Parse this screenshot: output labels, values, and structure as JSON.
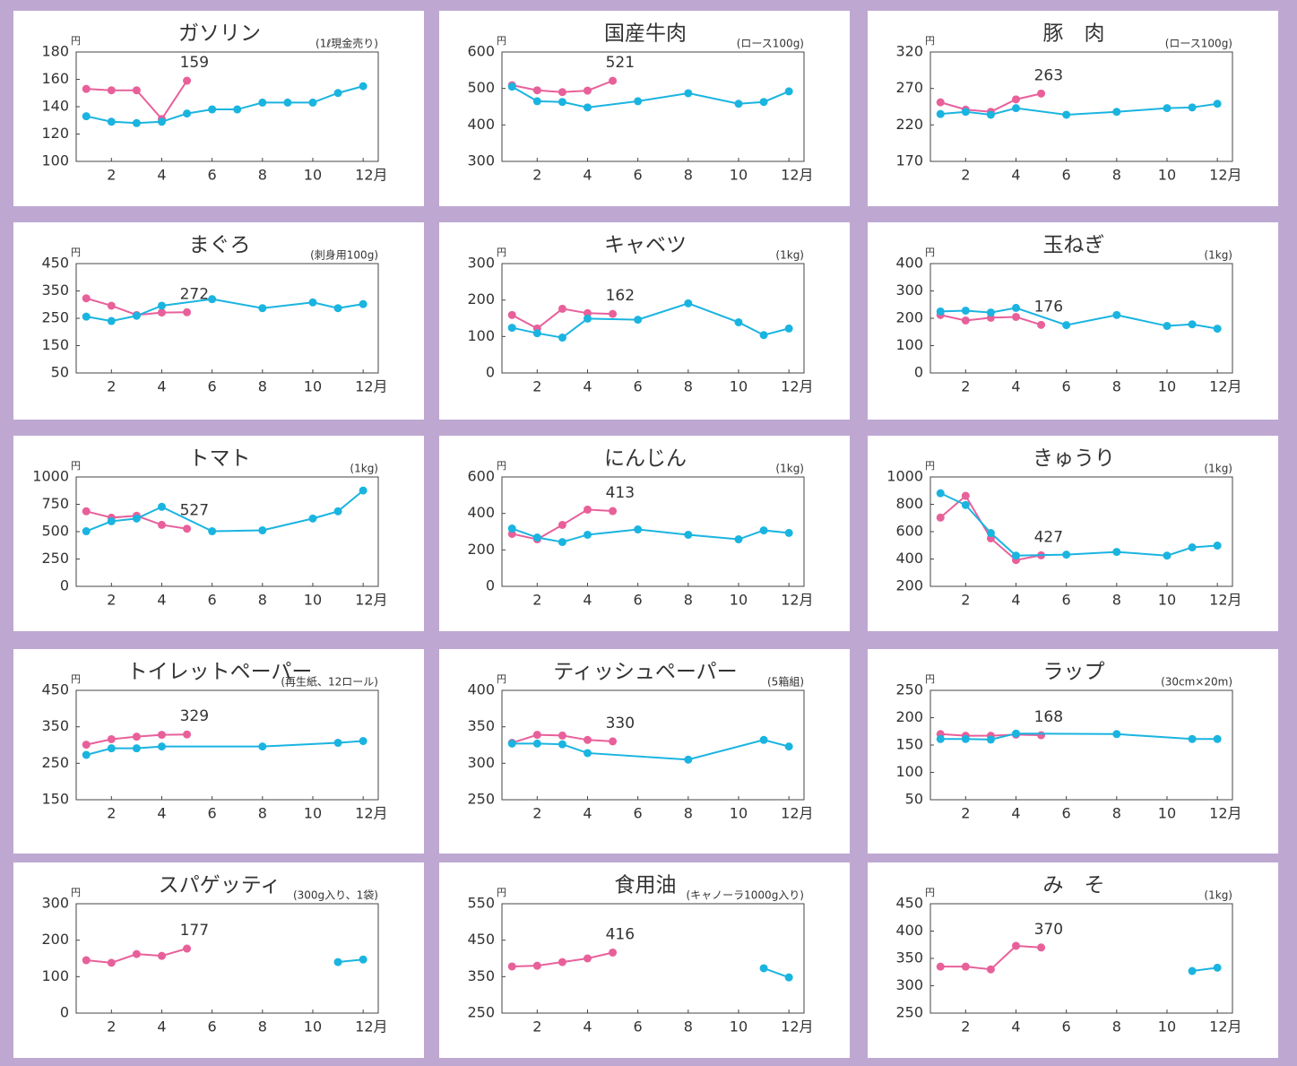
{
  "chart_data": [
    {
      "type": "line",
      "title": "ガソリン",
      "subtitle": "(1ℓ現金売り)",
      "y_unit": "円",
      "xlim": [
        0.6,
        12.6
      ],
      "xticks": [
        2,
        4,
        6,
        8,
        10,
        {
          "value": 12,
          "label": "12月"
        }
      ],
      "ylim": [
        100,
        180
      ],
      "yticks": [
        100,
        120,
        140,
        160,
        180
      ],
      "series": [
        {
          "color": "#e8609a",
          "x": [
            1,
            2,
            3,
            4,
            5
          ],
          "values": [
            153,
            152,
            152,
            131,
            159
          ],
          "value_labels": [
            null,
            null,
            null,
            null,
            "159"
          ]
        },
        {
          "color": "#1ab4e0",
          "x": [
            1,
            2,
            3,
            4,
            5,
            6,
            7,
            8,
            9,
            10,
            11,
            12
          ],
          "values": [
            133,
            129,
            128,
            129,
            135,
            138,
            138,
            143,
            143,
            143,
            150,
            155
          ]
        }
      ]
    },
    {
      "type": "line",
      "title": "国産牛肉",
      "subtitle": "(ロース100g)",
      "y_unit": "円",
      "xlim": [
        0.6,
        12.6
      ],
      "xticks": [
        2,
        4,
        6,
        8,
        10,
        {
          "value": 12,
          "label": "12月"
        }
      ],
      "ylim": [
        300,
        600
      ],
      "yticks": [
        300,
        400,
        500,
        600
      ],
      "series": [
        {
          "color": "#e8609a",
          "x": [
            1,
            2,
            3,
            4,
            5
          ],
          "values": [
            509,
            495,
            490,
            494,
            521
          ],
          "value_labels": [
            null,
            null,
            null,
            null,
            "521"
          ]
        },
        {
          "color": "#1ab4e0",
          "x": [
            1,
            2,
            3,
            4,
            6,
            8,
            10,
            11,
            12
          ],
          "values": [
            505,
            465,
            463,
            448,
            465,
            487,
            458,
            463,
            492
          ]
        }
      ]
    },
    {
      "type": "line",
      "title": "豚　肉",
      "subtitle": "(ロース100g)",
      "y_unit": "円",
      "xlim": [
        0.6,
        12.6
      ],
      "xticks": [
        2,
        4,
        6,
        8,
        10,
        {
          "value": 12,
          "label": "12月"
        }
      ],
      "ylim": [
        170,
        320
      ],
      "yticks": [
        170,
        220,
        270,
        320
      ],
      "series": [
        {
          "color": "#e8609a",
          "x": [
            1,
            2,
            3,
            4,
            5
          ],
          "values": [
            251,
            241,
            238,
            255,
            263
          ],
          "value_labels": [
            null,
            null,
            null,
            null,
            "263"
          ]
        },
        {
          "color": "#1ab4e0",
          "x": [
            1,
            2,
            3,
            4,
            6,
            8,
            10,
            11,
            12
          ],
          "values": [
            235,
            238,
            234,
            243,
            234,
            238,
            243,
            244,
            249
          ]
        }
      ]
    },
    {
      "type": "line",
      "title": "まぐろ",
      "subtitle": "(刺身用100g)",
      "y_unit": "円",
      "xlim": [
        0.6,
        12.6
      ],
      "xticks": [
        2,
        4,
        6,
        8,
        10,
        {
          "value": 12,
          "label": "12月"
        }
      ],
      "ylim": [
        50,
        450
      ],
      "yticks": [
        50,
        150,
        250,
        350,
        450
      ],
      "series": [
        {
          "color": "#e8609a",
          "x": [
            1,
            2,
            3,
            4,
            5
          ],
          "values": [
            323,
            296,
            262,
            271,
            272
          ],
          "value_labels": [
            null,
            null,
            null,
            null,
            "272"
          ]
        },
        {
          "color": "#1ab4e0",
          "x": [
            1,
            2,
            3,
            4,
            6,
            8,
            10,
            11,
            12
          ],
          "values": [
            256,
            240,
            259,
            296,
            320,
            287,
            308,
            287,
            302
          ]
        }
      ]
    },
    {
      "type": "line",
      "title": "キャベツ",
      "subtitle": "(1kg)",
      "y_unit": "円",
      "xlim": [
        0.6,
        12.6
      ],
      "xticks": [
        2,
        4,
        6,
        8,
        10,
        {
          "value": 12,
          "label": "12月"
        }
      ],
      "ylim": [
        0,
        300
      ],
      "yticks": [
        0,
        100,
        200,
        300
      ],
      "series": [
        {
          "color": "#e8609a",
          "x": [
            1,
            2,
            3,
            4,
            5
          ],
          "values": [
            159,
            122,
            176,
            164,
            162
          ],
          "value_labels": [
            null,
            null,
            null,
            null,
            "162"
          ]
        },
        {
          "color": "#1ab4e0",
          "x": [
            1,
            2,
            3,
            4,
            6,
            8,
            10,
            11,
            12
          ],
          "values": [
            124,
            109,
            97,
            149,
            146,
            191,
            139,
            104,
            122
          ]
        }
      ]
    },
    {
      "type": "line",
      "title": "玉ねぎ",
      "subtitle": "(1kg)",
      "y_unit": "円",
      "xlim": [
        0.6,
        12.6
      ],
      "xticks": [
        2,
        4,
        6,
        8,
        10,
        {
          "value": 12,
          "label": "12月"
        }
      ],
      "ylim": [
        0,
        400
      ],
      "yticks": [
        0,
        100,
        200,
        300,
        400
      ],
      "series": [
        {
          "color": "#e8609a",
          "x": [
            1,
            2,
            3,
            4,
            5
          ],
          "values": [
            212,
            192,
            202,
            205,
            176
          ],
          "value_labels": [
            null,
            null,
            null,
            null,
            "176"
          ]
        },
        {
          "color": "#1ab4e0",
          "x": [
            1,
            2,
            3,
            4,
            6,
            8,
            10,
            11,
            12
          ],
          "values": [
            225,
            228,
            221,
            238,
            175,
            212,
            172,
            178,
            162
          ]
        }
      ]
    },
    {
      "type": "line",
      "title": "トマト",
      "subtitle": "(1kg)",
      "y_unit": "円",
      "xlim": [
        0.6,
        12.6
      ],
      "xticks": [
        2,
        4,
        6,
        8,
        10,
        {
          "value": 12,
          "label": "12月"
        }
      ],
      "ylim": [
        0,
        1000
      ],
      "yticks": [
        0,
        250,
        500,
        750,
        1000
      ],
      "series": [
        {
          "color": "#e8609a",
          "x": [
            1,
            2,
            3,
            4,
            5
          ],
          "values": [
            686,
            628,
            645,
            562,
            527
          ],
          "value_labels": [
            null,
            null,
            null,
            null,
            "527"
          ]
        },
        {
          "color": "#1ab4e0",
          "x": [
            1,
            2,
            3,
            4,
            6,
            8,
            10,
            11,
            12
          ],
          "values": [
            504,
            595,
            620,
            727,
            504,
            512,
            620,
            686,
            876
          ]
        }
      ]
    },
    {
      "type": "line",
      "title": "にんじん",
      "subtitle": "(1kg)",
      "y_unit": "円",
      "xlim": [
        0.6,
        12.6
      ],
      "xticks": [
        2,
        4,
        6,
        8,
        10,
        {
          "value": 12,
          "label": "12月"
        }
      ],
      "ylim": [
        0,
        600
      ],
      "yticks": [
        0,
        200,
        400,
        600
      ],
      "series": [
        {
          "color": "#e8609a",
          "x": [
            1,
            2,
            3,
            4,
            5
          ],
          "values": [
            288,
            258,
            337,
            421,
            413
          ],
          "value_labels": [
            null,
            null,
            null,
            null,
            "413"
          ]
        },
        {
          "color": "#1ab4e0",
          "x": [
            1,
            2,
            3,
            4,
            6,
            8,
            10,
            11,
            12
          ],
          "values": [
            317,
            268,
            243,
            283,
            312,
            283,
            258,
            307,
            293
          ]
        }
      ]
    },
    {
      "type": "line",
      "title": "きゅうり",
      "subtitle": "(1kg)",
      "y_unit": "円",
      "xlim": [
        0.6,
        12.6
      ],
      "xticks": [
        2,
        4,
        6,
        8,
        10,
        {
          "value": 12,
          "label": "12月"
        }
      ],
      "ylim": [
        200,
        1000
      ],
      "yticks": [
        200,
        400,
        600,
        800,
        1000
      ],
      "series": [
        {
          "color": "#e8609a",
          "x": [
            1,
            2,
            3,
            4,
            5
          ],
          "values": [
            703,
            862,
            551,
            392,
            427
          ],
          "value_labels": [
            null,
            null,
            null,
            null,
            "427"
          ]
        },
        {
          "color": "#1ab4e0",
          "x": [
            1,
            2,
            3,
            4,
            6,
            8,
            10,
            11,
            12
          ],
          "values": [
            881,
            795,
            590,
            425,
            432,
            452,
            425,
            485,
            498
          ]
        }
      ]
    },
    {
      "type": "line",
      "title": "トイレットペーパー",
      "subtitle": "(再生紙、12ロール)",
      "y_unit": "円",
      "xlim": [
        0.6,
        12.6
      ],
      "xticks": [
        2,
        4,
        6,
        8,
        10,
        {
          "value": 12,
          "label": "12月"
        }
      ],
      "ylim": [
        150,
        450
      ],
      "yticks": [
        150,
        250,
        350,
        450
      ],
      "series": [
        {
          "color": "#e8609a",
          "x": [
            1,
            2,
            3,
            4,
            5
          ],
          "values": [
            301,
            316,
            323,
            328,
            329
          ],
          "value_labels": [
            null,
            null,
            null,
            null,
            "329"
          ]
        },
        {
          "color": "#1ab4e0",
          "x": [
            1,
            2,
            3,
            4,
            8,
            11,
            12
          ],
          "values": [
            273,
            291,
            291,
            296,
            296,
            306,
            311
          ]
        }
      ]
    },
    {
      "type": "line",
      "title": "ティッシュペーパー",
      "subtitle": "(5箱組)",
      "y_unit": "円",
      "xlim": [
        0.6,
        12.6
      ],
      "xticks": [
        2,
        4,
        6,
        8,
        10,
        {
          "value": 12,
          "label": "12月"
        }
      ],
      "ylim": [
        250,
        400
      ],
      "yticks": [
        250,
        300,
        350,
        400
      ],
      "series": [
        {
          "color": "#e8609a",
          "x": [
            1,
            2,
            3,
            4,
            5
          ],
          "values": [
            328,
            339,
            338,
            332,
            330
          ],
          "value_labels": [
            null,
            null,
            null,
            null,
            "330"
          ]
        },
        {
          "color": "#1ab4e0",
          "x": [
            1,
            2,
            3,
            4,
            8,
            11,
            12
          ],
          "values": [
            327,
            327,
            326,
            314,
            305,
            332,
            323
          ]
        }
      ]
    },
    {
      "type": "line",
      "title": "ラップ",
      "subtitle": "(30cm×20m)",
      "y_unit": "円",
      "xlim": [
        0.6,
        12.6
      ],
      "xticks": [
        2,
        4,
        6,
        8,
        10,
        {
          "value": 12,
          "label": "12月"
        }
      ],
      "ylim": [
        50,
        250
      ],
      "yticks": [
        50,
        100,
        150,
        200,
        250
      ],
      "series": [
        {
          "color": "#e8609a",
          "x": [
            1,
            2,
            3,
            4,
            5
          ],
          "values": [
            170,
            167,
            167,
            169,
            168
          ],
          "value_labels": [
            null,
            null,
            null,
            null,
            "168"
          ]
        },
        {
          "color": "#1ab4e0",
          "x": [
            1,
            2,
            3,
            4,
            8,
            11,
            12
          ],
          "values": [
            161,
            161,
            160,
            171,
            170,
            161,
            161
          ]
        }
      ]
    },
    {
      "type": "line",
      "title": "スパゲッティ",
      "subtitle": "(300g入り、1袋)",
      "y_unit": "円",
      "xlim": [
        0.6,
        12.6
      ],
      "xticks": [
        2,
        4,
        6,
        8,
        10,
        {
          "value": 12,
          "label": "12月"
        }
      ],
      "ylim": [
        0,
        300
      ],
      "yticks": [
        0,
        100,
        200,
        300
      ],
      "series": [
        {
          "color": "#e8609a",
          "x": [
            1,
            2,
            3,
            4,
            5
          ],
          "values": [
            145,
            138,
            162,
            157,
            177
          ],
          "value_labels": [
            null,
            null,
            null,
            null,
            "177"
          ]
        },
        {
          "color": "#1ab4e0",
          "x": [
            11,
            12
          ],
          "values": [
            140,
            147
          ]
        }
      ]
    },
    {
      "type": "line",
      "title": "食用油",
      "subtitle": "(キャノーラ1000g入り)",
      "y_unit": "円",
      "xlim": [
        0.6,
        12.6
      ],
      "xticks": [
        2,
        4,
        6,
        8,
        10,
        {
          "value": 12,
          "label": "12月"
        }
      ],
      "ylim": [
        250,
        550
      ],
      "yticks": [
        250,
        350,
        450,
        550
      ],
      "series": [
        {
          "color": "#e8609a",
          "x": [
            1,
            2,
            3,
            4,
            5
          ],
          "values": [
            378,
            380,
            390,
            400,
            416
          ],
          "value_labels": [
            null,
            null,
            null,
            null,
            "416"
          ]
        },
        {
          "color": "#1ab4e0",
          "x": [
            11,
            12
          ],
          "values": [
            373,
            348
          ]
        }
      ]
    },
    {
      "type": "line",
      "title": "み　そ",
      "subtitle": "(1kg)",
      "y_unit": "円",
      "xlim": [
        0.6,
        12.6
      ],
      "xticks": [
        2,
        4,
        6,
        8,
        10,
        {
          "value": 12,
          "label": "12月"
        }
      ],
      "ylim": [
        250,
        450
      ],
      "yticks": [
        250,
        300,
        350,
        400,
        450
      ],
      "series": [
        {
          "color": "#e8609a",
          "x": [
            1,
            2,
            3,
            4,
            5
          ],
          "values": [
            335,
            335,
            330,
            373,
            370
          ],
          "value_labels": [
            null,
            null,
            null,
            null,
            "370"
          ]
        },
        {
          "color": "#1ab4e0",
          "x": [
            11,
            12
          ],
          "values": [
            327,
            333
          ]
        }
      ]
    }
  ]
}
